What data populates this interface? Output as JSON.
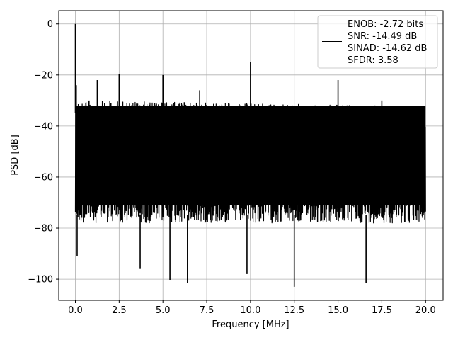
{
  "chart_data": {
    "type": "line",
    "title": "",
    "xlabel": "Frequency [MHz]",
    "ylabel": "PSD [dB]",
    "xlim": [
      -0.95,
      21.0
    ],
    "ylim": [
      -108.3,
      5.2
    ],
    "xticks": [
      0.0,
      2.5,
      5.0,
      7.5,
      10.0,
      12.5,
      15.0,
      17.5,
      20.0
    ],
    "xtick_labels": [
      "0.0",
      "2.5",
      "5.0",
      "7.5",
      "10.0",
      "12.5",
      "15.0",
      "17.5",
      "20.0"
    ],
    "yticks": [
      0,
      -20,
      -40,
      -60,
      -80,
      -100
    ],
    "ytick_labels": [
      "0",
      "−20",
      "−40",
      "−60",
      "−80",
      "−100"
    ],
    "grid": true,
    "legend_position": "top-right",
    "series": [
      {
        "name": "ENOB: -2.72 bits\nSNR: -14.49 dB\nSINAD: -14.62 dB\nSFDR: 3.58",
        "color": "#000000",
        "noise_band_db": [
          -75,
          -30
        ],
        "peaks": [
          {
            "x": 0.0,
            "y": 0.0
          },
          {
            "x": 0.05,
            "y": -24
          },
          {
            "x": 1.25,
            "y": -22
          },
          {
            "x": 2.5,
            "y": -19.5
          },
          {
            "x": 5.0,
            "y": -20
          },
          {
            "x": 7.1,
            "y": -26
          },
          {
            "x": 10.0,
            "y": -15
          },
          {
            "x": 15.0,
            "y": -22
          },
          {
            "x": 17.5,
            "y": -30
          }
        ],
        "dips": [
          {
            "x": 0.1,
            "y": -91
          },
          {
            "x": 3.7,
            "y": -96
          },
          {
            "x": 5.4,
            "y": -100.5
          },
          {
            "x": 6.4,
            "y": -101.5
          },
          {
            "x": 9.8,
            "y": -98
          },
          {
            "x": 12.5,
            "y": -103
          },
          {
            "x": 16.6,
            "y": -101.5
          }
        ]
      }
    ]
  },
  "legend": {
    "lines": [
      "ENOB: -2.72 bits",
      "SNR: -14.49 dB",
      "SINAD: -14.62 dB",
      "SFDR: 3.58"
    ]
  }
}
